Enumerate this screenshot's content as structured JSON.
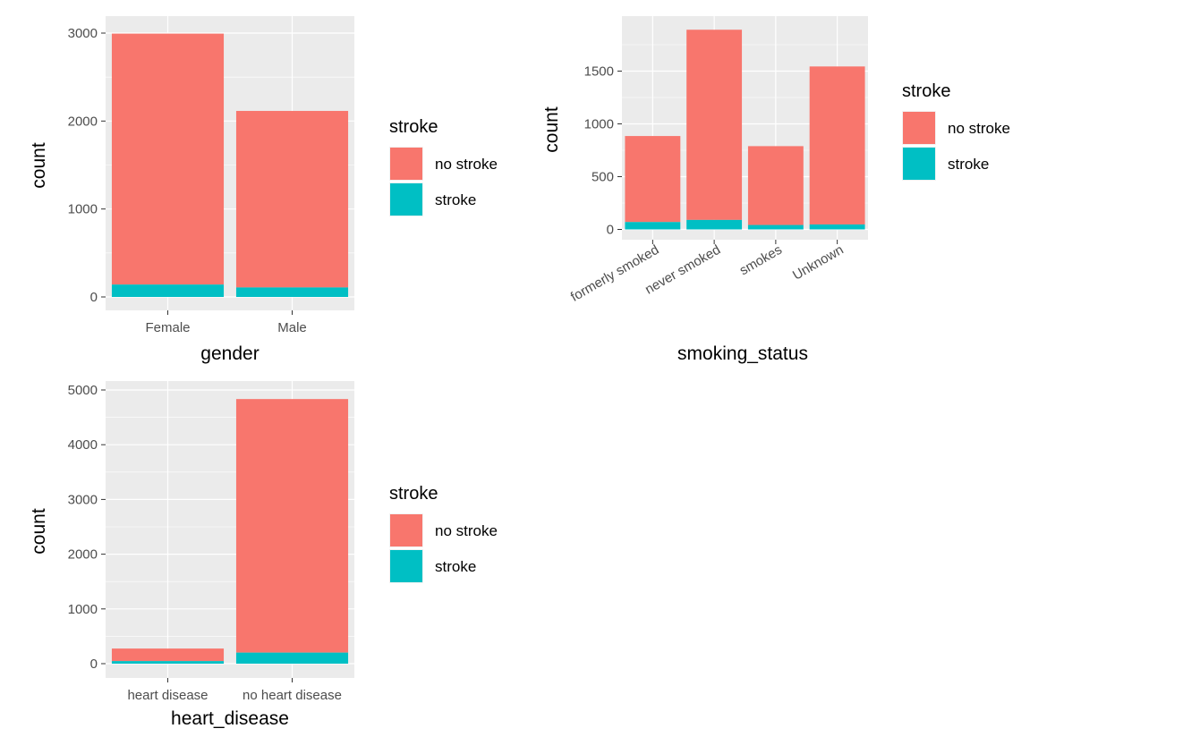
{
  "colors": {
    "no_stroke": "#F8766D",
    "stroke": "#00BFC4",
    "panel": "#EBEBEB",
    "grid": "#FFFFFF"
  },
  "chart_data": [
    {
      "type": "bar",
      "stacked": true,
      "xlabel": "gender",
      "ylabel": "count",
      "categories": [
        "Female",
        "Male"
      ],
      "series": [
        {
          "name": "no stroke",
          "values": [
            2853,
            2007
          ]
        },
        {
          "name": "stroke",
          "values": [
            141,
            108
          ]
        }
      ],
      "ylim": [
        0,
        3000
      ],
      "yticks": [
        "0",
        "1000",
        "2000",
        "3000"
      ],
      "legend": {
        "title": "stroke",
        "position": "right",
        "items": [
          "no stroke",
          "stroke"
        ]
      },
      "grid": true
    },
    {
      "type": "bar",
      "stacked": true,
      "xlabel": "smoking_status",
      "ylabel": "count",
      "categories": [
        "formerly smoked",
        "never smoked",
        "smokes",
        "Unknown"
      ],
      "series": [
        {
          "name": "no stroke",
          "values": [
            815,
            1802,
            747,
            1497
          ]
        },
        {
          "name": "stroke",
          "values": [
            70,
            90,
            42,
            47
          ]
        }
      ],
      "ylim": [
        0,
        1890
      ],
      "yticks": [
        "0",
        "500",
        "1000",
        "1500"
      ],
      "legend": {
        "title": "stroke",
        "position": "right",
        "items": [
          "no stroke",
          "stroke"
        ]
      },
      "grid": true
    },
    {
      "type": "bar",
      "stacked": true,
      "xlabel": "heart_disease",
      "ylabel": "count",
      "categories": [
        "heart disease",
        "no heart disease"
      ],
      "series": [
        {
          "name": "no stroke",
          "values": [
            229,
            4632
          ]
        },
        {
          "name": "stroke",
          "values": [
            47,
            202
          ]
        }
      ],
      "ylim": [
        0,
        5000
      ],
      "yticks": [
        "0",
        "1000",
        "2000",
        "3000",
        "4000",
        "5000"
      ],
      "legend": {
        "title": "stroke",
        "position": "right",
        "items": [
          "no stroke",
          "stroke"
        ]
      },
      "grid": true
    }
  ]
}
